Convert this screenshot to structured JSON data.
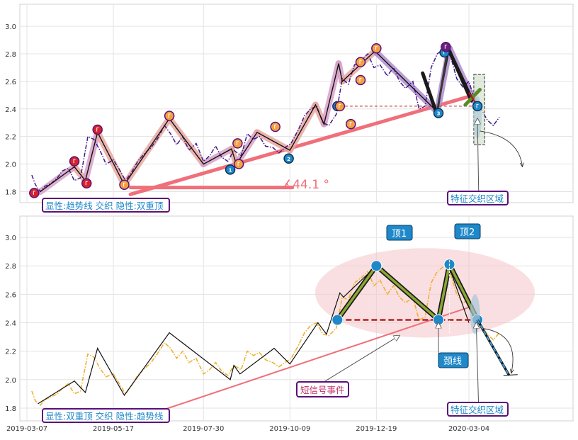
{
  "chart_data": [
    {
      "panel": "top",
      "type": "line",
      "ylim": [
        1.72,
        3.16
      ],
      "yticks": [
        "1.8",
        "2.0",
        "2.2",
        "2.4",
        "2.6",
        "2.8",
        "3.0"
      ],
      "grid": true,
      "series": [
        {
          "role": "price",
          "style": "dash-dot, purple",
          "points": [
            [
              "2019-03-11",
              1.92
            ],
            [
              "2019-03-14",
              1.85
            ],
            [
              "2019-03-18",
              1.8
            ],
            [
              "2019-03-22",
              1.84
            ],
            [
              "2019-03-27",
              1.86
            ],
            [
              "2019-04-01",
              1.9
            ],
            [
              "2019-04-05",
              1.95
            ],
            [
              "2019-04-10",
              1.97
            ],
            [
              "2019-04-15",
              1.88
            ],
            [
              "2019-04-20",
              1.9
            ],
            [
              "2019-04-26",
              2.2
            ],
            [
              "2019-05-01",
              2.18
            ],
            [
              "2019-05-06",
              2.1
            ],
            [
              "2019-05-11",
              2.0
            ],
            [
              "2019-05-17",
              2.03
            ],
            [
              "2019-05-22",
              1.96
            ],
            [
              "2019-05-27",
              1.88
            ],
            [
              "2019-06-01",
              1.94
            ],
            [
              "2019-06-06",
              2.02
            ],
            [
              "2019-06-12",
              2.08
            ],
            [
              "2019-06-17",
              2.12
            ],
            [
              "2019-06-22",
              2.18
            ],
            [
              "2019-06-28",
              2.28
            ],
            [
              "2019-07-03",
              2.22
            ],
            [
              "2019-07-08",
              2.14
            ],
            [
              "2019-07-13",
              2.2
            ],
            [
              "2019-07-18",
              2.1
            ],
            [
              "2019-07-24",
              2.15
            ],
            [
              "2019-07-30",
              2.02
            ],
            [
              "2019-08-04",
              2.06
            ],
            [
              "2019-08-09",
              2.13
            ],
            [
              "2019-08-14",
              2.05
            ],
            [
              "2019-08-19",
              2.02
            ],
            [
              "2019-08-24",
              2.1
            ],
            [
              "2019-08-30",
              2.06
            ],
            [
              "2019-09-04",
              2.22
            ],
            [
              "2019-09-09",
              2.18
            ],
            [
              "2019-09-14",
              2.2
            ],
            [
              "2019-09-19",
              2.13
            ],
            [
              "2019-09-25",
              2.12
            ],
            [
              "2019-09-30",
              2.08
            ],
            [
              "2019-10-05",
              2.12
            ],
            [
              "2019-10-10",
              2.15
            ],
            [
              "2019-10-16",
              2.25
            ],
            [
              "2019-10-21",
              2.35
            ],
            [
              "2019-10-26",
              2.4
            ],
            [
              "2019-10-31",
              2.42
            ],
            [
              "2019-11-05",
              2.3
            ],
            [
              "2019-11-10",
              2.28
            ],
            [
              "2019-11-16",
              2.36
            ],
            [
              "2019-11-21",
              2.62
            ],
            [
              "2019-11-26",
              2.58
            ],
            [
              "2019-12-01",
              2.72
            ],
            [
              "2019-12-07",
              2.76
            ],
            [
              "2019-12-12",
              2.8
            ],
            [
              "2019-12-17",
              2.7
            ],
            [
              "2019-12-22",
              2.72
            ],
            [
              "2019-12-28",
              2.64
            ],
            [
              "2020-01-02",
              2.7
            ],
            [
              "2020-01-07",
              2.6
            ],
            [
              "2020-01-12",
              2.55
            ],
            [
              "2020-01-18",
              2.6
            ],
            [
              "2020-01-23",
              2.4
            ],
            [
              "2020-01-28",
              2.42
            ],
            [
              "2020-02-02",
              2.7
            ],
            [
              "2020-02-07",
              2.8
            ],
            [
              "2020-02-13",
              2.84
            ],
            [
              "2020-02-18",
              2.78
            ],
            [
              "2020-02-23",
              2.62
            ],
            [
              "2020-02-28",
              2.56
            ],
            [
              "2020-03-04",
              2.6
            ],
            [
              "2020-03-09",
              2.46
            ],
            [
              "2020-03-14",
              2.4
            ],
            [
              "2020-03-19",
              2.32
            ],
            [
              "2020-03-24",
              2.28
            ],
            [
              "2020-03-29",
              2.34
            ]
          ]
        },
        {
          "role": "zigzag",
          "style": "black line over pink / purple band",
          "points": [
            [
              "2019-03-18",
              1.8
            ],
            [
              "2019-04-15",
              1.98
            ],
            [
              "2019-04-24",
              1.88
            ],
            [
              "2019-05-04",
              2.23
            ],
            [
              "2019-05-26",
              1.85
            ],
            [
              "2019-07-02",
              2.33
            ],
            [
              "2019-07-30",
              2.0
            ],
            [
              "2019-08-22",
              2.11
            ],
            [
              "2019-08-26",
              2.0
            ],
            [
              "2019-09-12",
              2.23
            ],
            [
              "2019-10-09",
              2.1
            ],
            [
              "2019-10-30",
              2.43
            ],
            [
              "2019-11-06",
              2.29
            ],
            [
              "2019-11-18",
              2.73
            ],
            [
              "2019-11-21",
              2.6
            ],
            [
              "2019-12-19",
              2.83
            ],
            [
              "2019-12-19",
              2.81
            ],
            [
              "2020-02-07",
              2.38
            ],
            [
              "2020-02-17",
              2.84
            ],
            [
              "2020-03-08",
              2.46
            ]
          ]
        }
      ],
      "markers": [
        {
          "x": "2019-03-13",
          "y": 1.79,
          "kind": "red"
        },
        {
          "x": "2019-04-15",
          "y": 2.02,
          "kind": "red"
        },
        {
          "x": "2019-04-25",
          "y": 1.86,
          "kind": "red"
        },
        {
          "x": "2019-05-04",
          "y": 2.25,
          "kind": "red"
        },
        {
          "x": "2019-05-26",
          "y": 1.85,
          "kind": "orange"
        },
        {
          "x": "2019-07-02",
          "y": 2.35,
          "kind": "orange"
        },
        {
          "x": "2019-08-21",
          "y": 1.96,
          "kind": "blue",
          "label": "1"
        },
        {
          "x": "2019-08-27",
          "y": 2.15,
          "kind": "orange"
        },
        {
          "x": "2019-08-28",
          "y": 2.0,
          "kind": "orange"
        },
        {
          "x": "2019-09-27",
          "y": 2.27,
          "kind": "orange"
        },
        {
          "x": "2019-10-08",
          "y": 2.04,
          "kind": "blue",
          "label": "2"
        },
        {
          "x": "2019-11-17",
          "y": 2.42,
          "kind": "blue"
        },
        {
          "x": "2019-11-19",
          "y": 2.42,
          "kind": "orange"
        },
        {
          "x": "2019-11-28",
          "y": 2.29,
          "kind": "orange"
        },
        {
          "x": "2019-12-06",
          "y": 2.74,
          "kind": "orange"
        },
        {
          "x": "2019-12-06",
          "y": 2.61,
          "kind": "orange"
        },
        {
          "x": "2019-12-19",
          "y": 2.84,
          "kind": "orange"
        },
        {
          "x": "2020-02-08",
          "y": 2.37,
          "kind": "blue",
          "label": "3"
        },
        {
          "x": "2020-02-13",
          "y": 2.81,
          "kind": "blue"
        },
        {
          "x": "2020-02-14",
          "y": 2.85,
          "kind": "purple"
        },
        {
          "x": "2020-03-11",
          "y": 2.42,
          "kind": "blue"
        }
      ],
      "trendline": {
        "x0": "2019-05-31",
        "y0": 1.78,
        "x1": "2020-03-08",
        "y1": 2.5
      },
      "angle_baseline": {
        "x0": "2019-05-31",
        "x1": "2019-10-11",
        "y": 1.83
      },
      "green_trend": {
        "x0": "2020-03-01",
        "y0": 2.43,
        "x1": "2020-03-13",
        "y1": 2.54
      },
      "neckline": {
        "x0": "2019-11-15",
        "x1": "2020-03-13",
        "y": 2.42
      },
      "annotations": {
        "angle_label": "∡44.1 °",
        "legend_label": "显性:趋势线 交织 隐性:双重顶",
        "region_label": "特征交织区域"
      }
    },
    {
      "panel": "bottom",
      "type": "line",
      "ylim": [
        1.71,
        3.15
      ],
      "yticks": [
        "1.8",
        "2.0",
        "2.2",
        "2.4",
        "2.6",
        "2.8",
        "3.0"
      ],
      "xticks": [
        "2019-03-07",
        "2019-05-17",
        "2019-07-30",
        "2019-10-09",
        "2019-12-19",
        "2020-03-04"
      ],
      "grid": true,
      "series": [
        {
          "role": "price",
          "style": "dash-dot, orange",
          "points": [
            [
              "2019-03-11",
              1.92
            ],
            [
              "2019-03-14",
              1.85
            ],
            [
              "2019-03-18",
              1.82
            ],
            [
              "2019-03-22",
              1.86
            ],
            [
              "2019-03-27",
              1.88
            ],
            [
              "2019-04-01",
              1.9
            ],
            [
              "2019-04-05",
              1.94
            ],
            [
              "2019-04-10",
              1.97
            ],
            [
              "2019-04-15",
              1.9
            ],
            [
              "2019-04-20",
              1.92
            ],
            [
              "2019-04-26",
              2.18
            ],
            [
              "2019-05-01",
              2.16
            ],
            [
              "2019-05-06",
              2.08
            ],
            [
              "2019-05-11",
              2.02
            ],
            [
              "2019-05-17",
              2.04
            ],
            [
              "2019-05-22",
              1.97
            ],
            [
              "2019-05-27",
              1.9
            ],
            [
              "2019-06-01",
              1.96
            ],
            [
              "2019-06-06",
              2.03
            ],
            [
              "2019-06-12",
              2.08
            ],
            [
              "2019-06-17",
              2.12
            ],
            [
              "2019-06-22",
              2.18
            ],
            [
              "2019-06-28",
              2.26
            ],
            [
              "2019-07-03",
              2.22
            ],
            [
              "2019-07-08",
              2.15
            ],
            [
              "2019-07-13",
              2.2
            ],
            [
              "2019-07-18",
              2.12
            ],
            [
              "2019-07-24",
              2.15
            ],
            [
              "2019-07-30",
              2.04
            ],
            [
              "2019-08-04",
              2.07
            ],
            [
              "2019-08-09",
              2.12
            ],
            [
              "2019-08-14",
              2.06
            ],
            [
              "2019-08-19",
              2.03
            ],
            [
              "2019-08-24",
              2.1
            ],
            [
              "2019-08-30",
              2.07
            ],
            [
              "2019-09-04",
              2.2
            ],
            [
              "2019-09-09",
              2.17
            ],
            [
              "2019-09-14",
              2.19
            ],
            [
              "2019-09-19",
              2.14
            ],
            [
              "2019-09-25",
              2.12
            ],
            [
              "2019-09-30",
              2.09
            ],
            [
              "2019-10-05",
              2.12
            ],
            [
              "2019-10-10",
              2.15
            ],
            [
              "2019-10-16",
              2.24
            ],
            [
              "2019-10-21",
              2.33
            ],
            [
              "2019-10-26",
              2.38
            ],
            [
              "2019-10-31",
              2.4
            ],
            [
              "2019-11-05",
              2.32
            ],
            [
              "2019-11-10",
              2.31
            ],
            [
              "2019-11-16",
              2.36
            ],
            [
              "2019-11-21",
              2.58
            ],
            [
              "2019-11-26",
              2.56
            ],
            [
              "2019-12-01",
              2.68
            ],
            [
              "2019-12-07",
              2.72
            ],
            [
              "2019-12-12",
              2.76
            ],
            [
              "2019-12-17",
              2.66
            ],
            [
              "2019-12-22",
              2.7
            ],
            [
              "2019-12-28",
              2.6
            ],
            [
              "2020-01-02",
              2.66
            ],
            [
              "2020-01-07",
              2.58
            ],
            [
              "2020-01-12",
              2.54
            ],
            [
              "2020-01-18",
              2.58
            ],
            [
              "2020-01-23",
              2.42
            ],
            [
              "2020-01-28",
              2.44
            ],
            [
              "2020-02-02",
              2.68
            ],
            [
              "2020-02-07",
              2.76
            ],
            [
              "2020-02-13",
              2.8
            ],
            [
              "2020-02-18",
              2.74
            ],
            [
              "2020-02-23",
              2.6
            ],
            [
              "2020-02-28",
              2.54
            ],
            [
              "2020-03-04",
              2.56
            ],
            [
              "2020-03-09",
              2.44
            ],
            [
              "2020-03-14",
              2.38
            ],
            [
              "2020-03-19",
              2.32
            ],
            [
              "2020-03-24",
              2.28
            ],
            [
              "2020-03-29",
              2.33
            ]
          ]
        },
        {
          "role": "zigzag",
          "style": "black line",
          "points": [
            [
              "2019-03-16",
              1.83
            ],
            [
              "2019-04-15",
              1.99
            ],
            [
              "2019-04-24",
              1.91
            ],
            [
              "2019-05-04",
              2.22
            ],
            [
              "2019-05-26",
              1.89
            ],
            [
              "2019-07-02",
              2.33
            ],
            [
              "2019-08-21",
              2.0
            ],
            [
              "2019-08-24",
              2.1
            ],
            [
              "2019-08-29",
              2.04
            ],
            [
              "2019-09-26",
              2.22
            ],
            [
              "2019-10-09",
              2.11
            ],
            [
              "2019-11-01",
              2.4
            ],
            [
              "2019-11-08",
              2.32
            ],
            [
              "2019-11-19",
              2.61
            ],
            [
              "2019-11-22",
              2.58
            ],
            [
              "2019-12-19",
              2.8
            ],
            [
              "2020-02-08",
              2.42
            ],
            [
              "2020-02-16",
              2.81
            ],
            [
              "2020-03-04",
              2.4
            ]
          ]
        },
        {
          "role": "double_top",
          "style": "black / olive thick line",
          "points": [
            [
              "2019-11-17",
              2.42
            ],
            [
              "2019-12-19",
              2.8
            ],
            [
              "2020-02-08",
              2.42
            ],
            [
              "2020-02-17",
              2.81
            ],
            [
              "2020-03-11",
              2.42
            ]
          ]
        }
      ],
      "peaks": [
        {
          "x": "2019-12-19",
          "y": 2.8,
          "label": "顶1",
          "label_y": 3.04
        },
        {
          "x": "2020-02-17",
          "y": 2.81,
          "label": "顶2",
          "label_y": 3.05
        }
      ],
      "neckline": {
        "x0": "2019-11-17",
        "x1": "2020-03-13",
        "y": 2.42
      },
      "trendline": {
        "x0": "2019-05-31",
        "y0": 1.71,
        "x1": "2020-03-08",
        "y1": 2.52
      },
      "target_line": {
        "x0": "2020-03-11",
        "y0": 2.42,
        "x1": "2020-04-06",
        "y1": 2.03
      },
      "annotations": {
        "neckline_label": "颈线",
        "signal_label": "短信号事件",
        "legend_label": "显性:双重顶 交织 隐性:趋势线",
        "region_label": "特征交织区域"
      }
    }
  ]
}
